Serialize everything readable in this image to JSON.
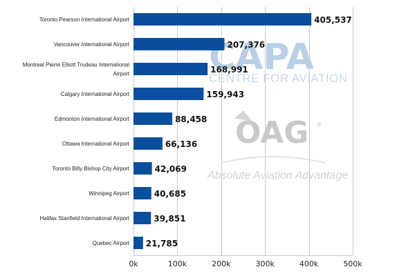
{
  "chart_data": {
    "type": "bar",
    "orientation": "horizontal",
    "categories": [
      "Toronto Pearson International Airport",
      "Vancouver International Airport",
      "Montreal Pierre Elliott Trudeau International Airport",
      "Calgary International Airport",
      "Edmonton International Airport",
      "Ottawa International Airport",
      "Toronto Billy Bishop City Airport",
      "Winnipeg Airport",
      "Halifax Stanfield International Airport",
      "Quebec Airport"
    ],
    "category_label_lines": [
      [
        "Toronto Pearson International Airport"
      ],
      [
        "Vancouver International Airport"
      ],
      [
        "Montreal Pierre Elliott Trudeau International",
        "Airport"
      ],
      [
        "Calgary International Airport"
      ],
      [
        "Edmonton International Airport"
      ],
      [
        "Ottawa International Airport"
      ],
      [
        "Toronto Billy Bishop City Airport"
      ],
      [
        "Winnipeg Airport"
      ],
      [
        "Halifax Stanfield International Airport"
      ],
      [
        "Quebec Airport"
      ]
    ],
    "values": [
      405537,
      207376,
      168991,
      159943,
      88458,
      66136,
      42069,
      40685,
      39851,
      21785
    ],
    "value_labels": [
      "405,537",
      "207,376",
      "168,991",
      "159,943",
      "88,458",
      "66,136",
      "42,069",
      "40,685",
      "39,851",
      "21,785"
    ],
    "x_ticks": [
      0,
      100000,
      200000,
      300000,
      400000,
      500000
    ],
    "x_tick_labels": [
      "0k",
      "100k",
      "200k",
      "300k",
      "400k",
      "500k"
    ],
    "xlim": [
      0,
      500000
    ],
    "grid": true,
    "legend": "none",
    "bar_color": "#0a4f9e"
  },
  "watermarks": {
    "capa_title": "CAPA",
    "capa_subtitle": "CENTRE FOR AVIATION",
    "oag_title": "OAG",
    "oag_registered": "®",
    "oag_tagline": "Absolute Aviation Advantage"
  }
}
